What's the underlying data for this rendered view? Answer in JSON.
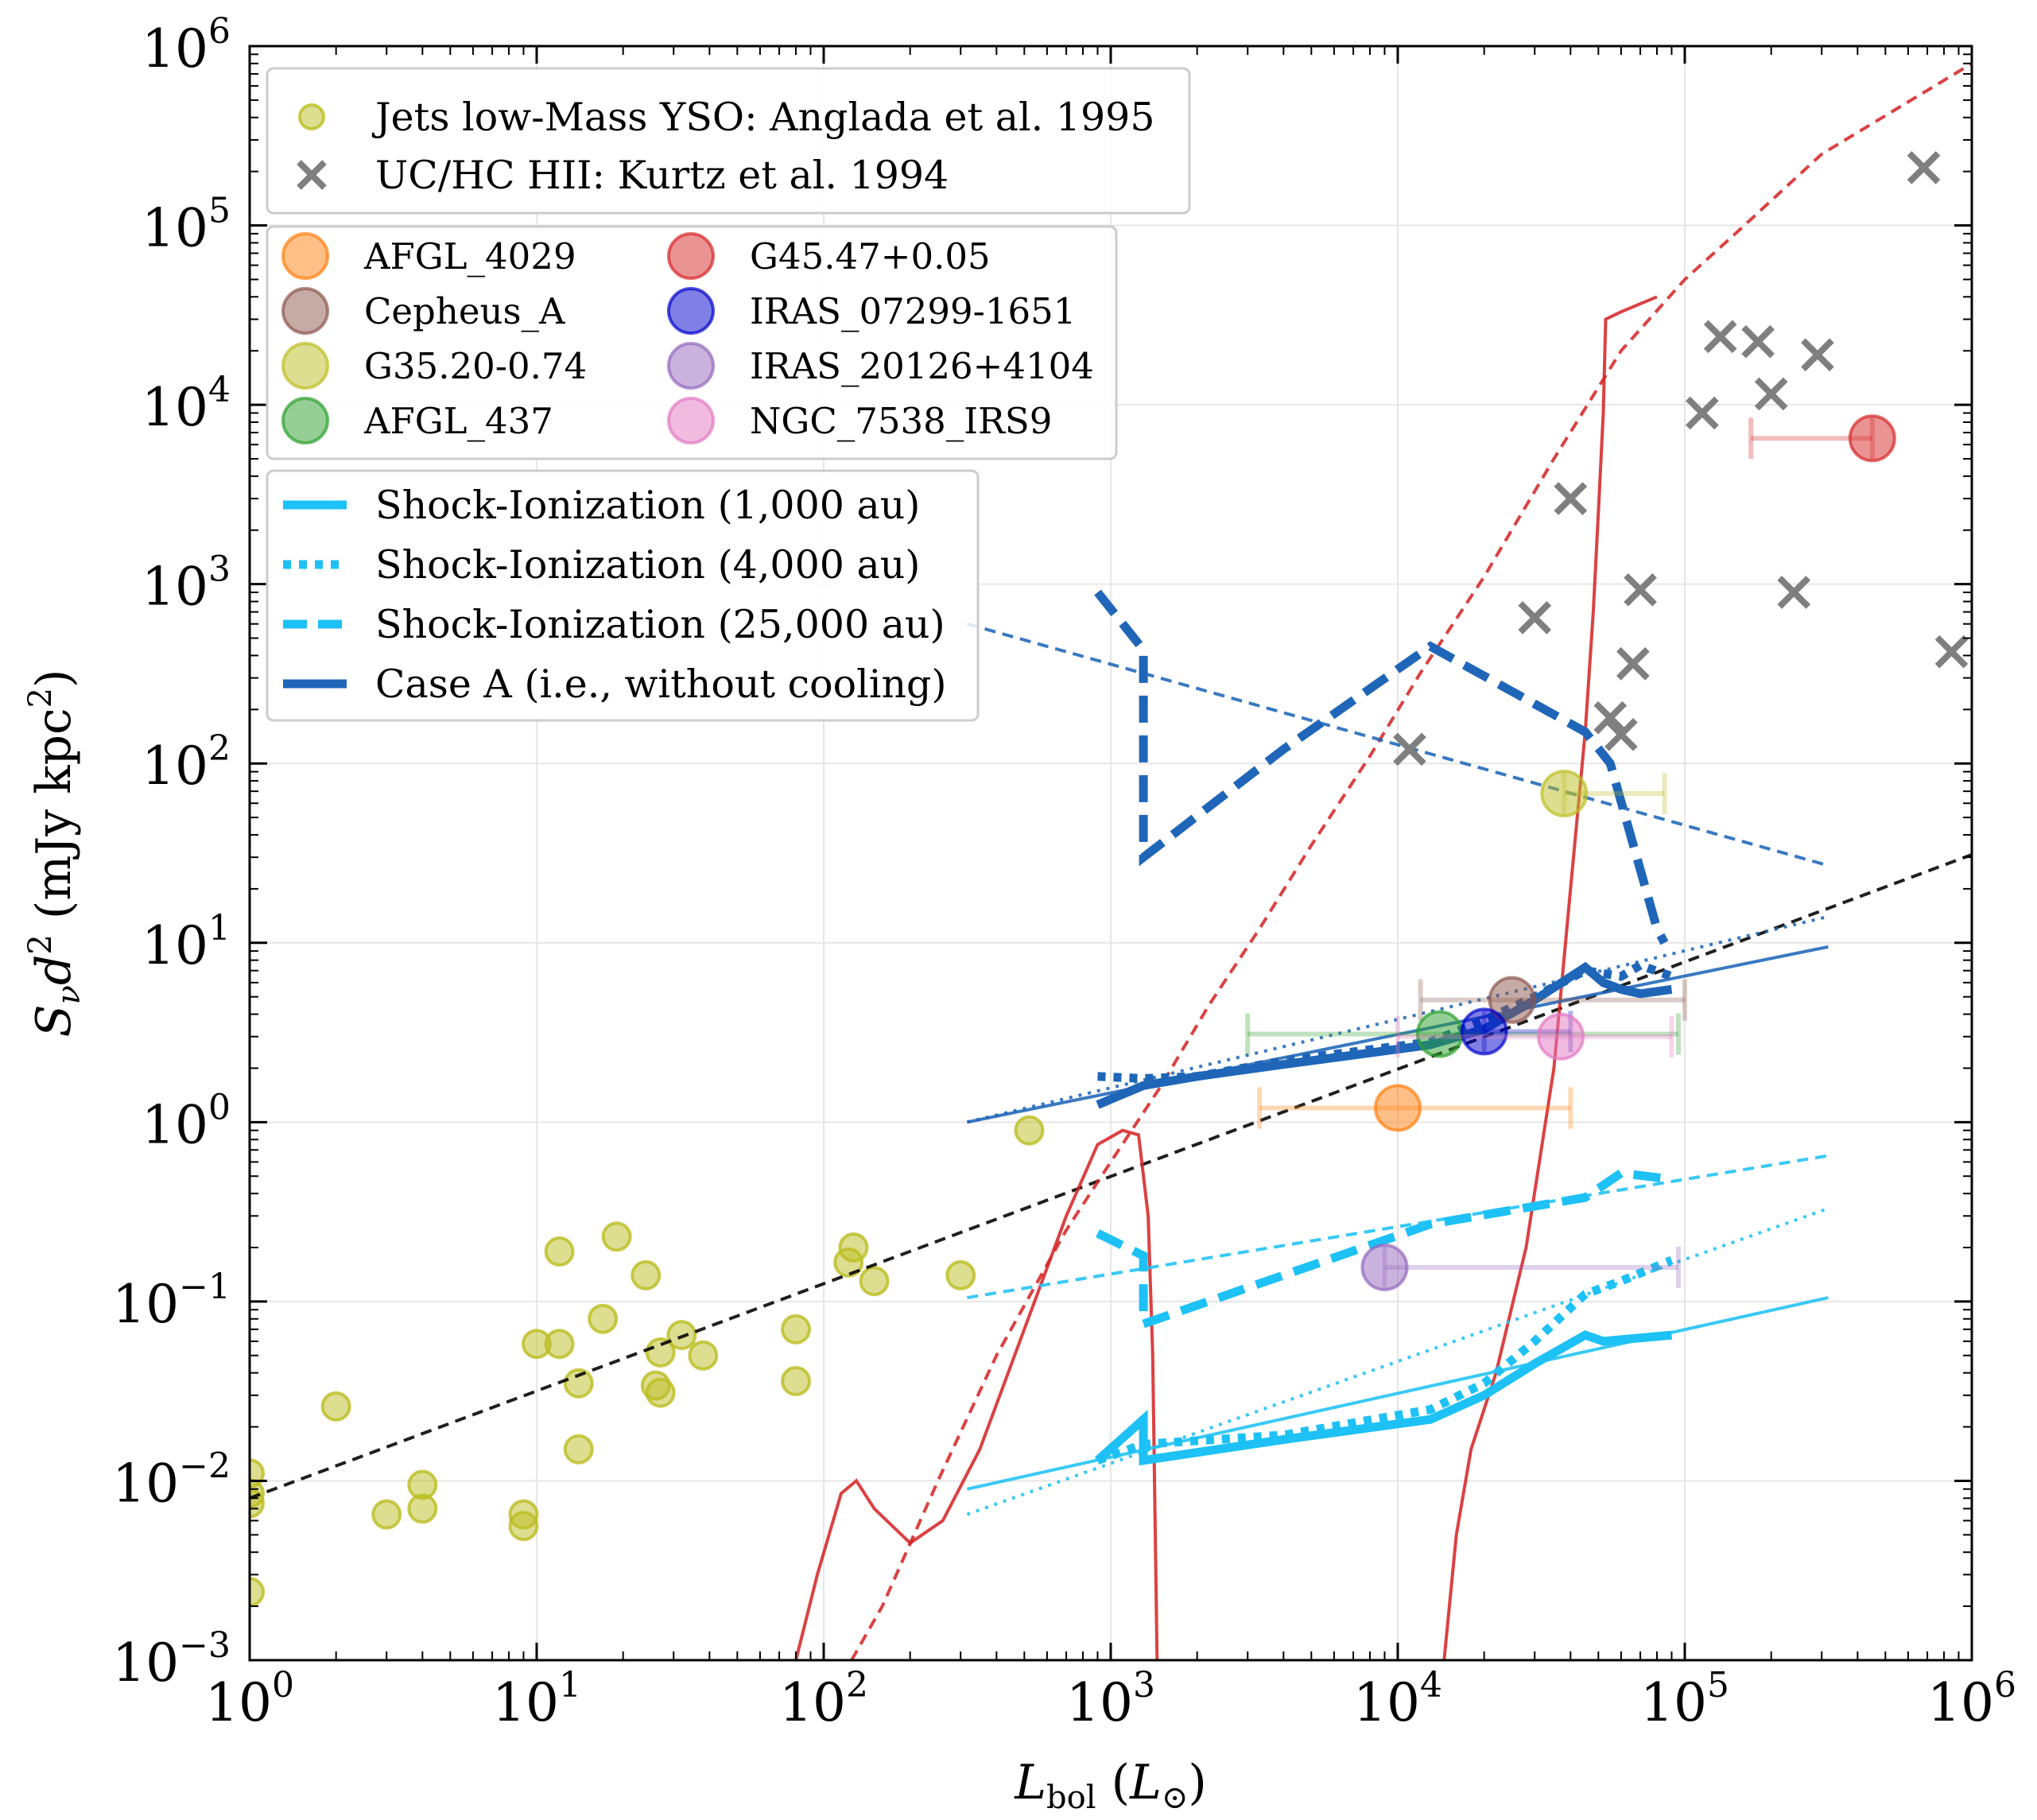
{
  "chart_data": {
    "type": "scatter",
    "xscale": "log",
    "yscale": "log",
    "xlim": [
      1,
      1000000
    ],
    "ylim": [
      0.001,
      1000000
    ],
    "xlabel": "L_bol (L_⊙)",
    "ylabel": "S_ν d² (mJy kpc²)",
    "grid": true,
    "x_ticks": [
      {
        "base": "10",
        "exp": "0",
        "value": 1
      },
      {
        "base": "10",
        "exp": "1",
        "value": 10
      },
      {
        "base": "10",
        "exp": "2",
        "value": 100
      },
      {
        "base": "10",
        "exp": "3",
        "value": 1000
      },
      {
        "base": "10",
        "exp": "4",
        "value": 10000
      },
      {
        "base": "10",
        "exp": "5",
        "value": 100000
      },
      {
        "base": "10",
        "exp": "6",
        "value": 1000000
      }
    ],
    "y_ticks": [
      {
        "base": "10",
        "exp": "−3",
        "value": 0.001
      },
      {
        "base": "10",
        "exp": "−2",
        "value": 0.01
      },
      {
        "base": "10",
        "exp": "−1",
        "value": 0.1
      },
      {
        "base": "10",
        "exp": "0",
        "value": 1
      },
      {
        "base": "10",
        "exp": "1",
        "value": 10
      },
      {
        "base": "10",
        "exp": "2",
        "value": 100
      },
      {
        "base": "10",
        "exp": "3",
        "value": 1000
      },
      {
        "base": "10",
        "exp": "4",
        "value": 10000
      },
      {
        "base": "10",
        "exp": "5",
        "value": 100000
      },
      {
        "base": "10",
        "exp": "6",
        "value": 1000000
      }
    ],
    "legend_reference": {
      "placement": "top-left",
      "entries": [
        {
          "label": "Jets low-Mass YSO: Anglada et al. 1995",
          "marker": "circle",
          "color": "#bcbd22"
        },
        {
          "label": "UC/HC HII: Kurtz et al. 1994",
          "marker": "x",
          "color": "#7f7f7f"
        }
      ]
    },
    "legend_sources": {
      "placement": "upper-left",
      "columns": [
        [
          "AFGL_4029",
          "Cepheus_A",
          "G35.20-0.74",
          "AFGL_437"
        ],
        [
          "G45.47+0.05",
          "IRAS_07299-1651",
          "IRAS_20126+4104",
          "NGC_7538_IRS9"
        ]
      ]
    },
    "legend_models": {
      "placement": "left",
      "entries": [
        {
          "label": "Shock-Ionization (1,000 au)",
          "style": "solid",
          "color": "#1ec1f5"
        },
        {
          "label": "Shock-Ionization (4,000 au)",
          "style": "dotted",
          "color": "#1ec1f5"
        },
        {
          "label": "Shock-Ionization (25,000 au)",
          "style": "dashed",
          "color": "#1ec1f5"
        },
        {
          "label": "Case A (i.e., without cooling)",
          "style": "solid",
          "color": "#1f66b8"
        }
      ]
    },
    "series": [
      {
        "name": "Jets low-Mass YSO: Anglada et al. 1995",
        "type": "scatter",
        "marker": "circle",
        "color": "#bcbd22",
        "points": [
          [
            1.0,
            0.011
          ],
          [
            1.0,
            0.0085
          ],
          [
            1.0,
            0.0075
          ],
          [
            1.0,
            0.0024
          ],
          [
            2.0,
            0.026
          ],
          [
            3.0,
            0.0065
          ],
          [
            4.0,
            0.0095
          ],
          [
            4.0,
            0.007
          ],
          [
            9.0,
            0.0065
          ],
          [
            9.0,
            0.0056
          ],
          [
            10,
            0.058
          ],
          [
            12,
            0.19
          ],
          [
            12,
            0.058
          ],
          [
            14,
            0.035
          ],
          [
            14,
            0.015
          ],
          [
            17,
            0.08
          ],
          [
            19,
            0.23
          ],
          [
            24,
            0.14
          ],
          [
            26,
            0.034
          ],
          [
            27,
            0.052
          ],
          [
            27,
            0.031
          ],
          [
            32,
            0.065
          ],
          [
            38,
            0.05
          ],
          [
            80,
            0.07
          ],
          [
            80,
            0.036
          ],
          [
            122,
            0.165
          ],
          [
            127,
            0.2
          ],
          [
            150,
            0.13
          ],
          [
            300,
            0.14
          ],
          [
            520,
            0.9
          ]
        ]
      },
      {
        "name": "UC/HC HII: Kurtz et al. 1994",
        "type": "scatter",
        "marker": "x",
        "color": "#7f7f7f",
        "points": [
          [
            11000,
            120
          ],
          [
            30000,
            650
          ],
          [
            40000,
            3000
          ],
          [
            55000,
            180
          ],
          [
            60000,
            145
          ],
          [
            66000,
            360
          ],
          [
            70000,
            930
          ],
          [
            115000,
            9000
          ],
          [
            133000,
            24000
          ],
          [
            180000,
            22500
          ],
          [
            200000,
            11500
          ],
          [
            240000,
            900
          ],
          [
            290000,
            19000
          ],
          [
            680000,
            210000
          ],
          [
            850000,
            420
          ]
        ]
      },
      {
        "name": "AFGL_4029",
        "type": "errorbar",
        "color": "#ff7f0e",
        "x": 10000,
        "y": 1.2,
        "xerr": [
          3300,
          40000
        ]
      },
      {
        "name": "Cepheus_A",
        "type": "errorbar",
        "color": "#8c564b",
        "x": 25000,
        "y": 4.8,
        "xerr": [
          12000,
          100000
        ]
      },
      {
        "name": "G35.20-0.74",
        "type": "errorbar",
        "color": "#bcbd22",
        "x": 38000,
        "y": 68,
        "xerr": [
          38000,
          85000
        ]
      },
      {
        "name": "AFGL_437",
        "type": "errorbar",
        "color": "#2ca02c",
        "x": 14000,
        "y": 3.1,
        "xerr": [
          3000,
          95000
        ]
      },
      {
        "name": "G45.47+0.05",
        "type": "errorbar",
        "color": "#d62728",
        "x": 450000,
        "y": 6500,
        "xerr": [
          170000,
          450000
        ]
      },
      {
        "name": "IRAS_07299-1651",
        "type": "errorbar",
        "color": "#0000cc",
        "x": 20000,
        "y": 3.2,
        "xerr": [
          20000,
          40000
        ]
      },
      {
        "name": "IRAS_20126+4104",
        "type": "errorbar",
        "color": "#9467bd",
        "x": 9000,
        "y": 0.155,
        "xerr": [
          9000,
          95000
        ]
      },
      {
        "name": "NGC_7538_IRS9",
        "type": "errorbar",
        "color": "#e377c2",
        "x": 37000,
        "y": 3.0,
        "xerr": [
          10000,
          90000
        ]
      },
      {
        "name": "Reference relation (black dashed)",
        "type": "line",
        "style": "dashed",
        "color": "#000000",
        "points": [
          [
            1,
            0.008
          ],
          [
            1000000,
            31
          ]
        ]
      },
      {
        "name": "Red dashed curve",
        "type": "line",
        "style": "dashed",
        "color": "#d62728",
        "points": [
          [
            125,
            0.001
          ],
          [
            160,
            0.002
          ],
          [
            250,
            0.01
          ],
          [
            400,
            0.05
          ],
          [
            700,
            0.25
          ],
          [
            1000,
            0.6
          ],
          [
            1500,
            1.6
          ],
          [
            2200,
            4.5
          ],
          [
            3300,
            12
          ],
          [
            5000,
            35
          ],
          [
            8000,
            110
          ],
          [
            12000,
            320
          ],
          [
            20000,
            1100
          ],
          [
            35000,
            5000
          ],
          [
            60000,
            20000
          ],
          [
            100000,
            50000
          ],
          [
            150000,
            90000
          ],
          [
            300000,
            250000
          ],
          [
            1000000,
            800000
          ]
        ]
      },
      {
        "name": "Red solid curve (low mass)",
        "type": "line",
        "style": "solid",
        "color": "#d62728",
        "points": [
          [
            80,
            0.001
          ],
          [
            95,
            0.003
          ],
          [
            115,
            0.0085
          ],
          [
            130,
            0.01
          ],
          [
            150,
            0.007
          ],
          [
            200,
            0.0045
          ],
          [
            260,
            0.006
          ],
          [
            350,
            0.015
          ],
          [
            500,
            0.07
          ],
          [
            700,
            0.3
          ],
          [
            900,
            0.75
          ],
          [
            1100,
            0.9
          ],
          [
            1250,
            0.85
          ],
          [
            1350,
            0.3
          ],
          [
            1400,
            0.05
          ],
          [
            1450,
            0.001
          ]
        ]
      },
      {
        "name": "Red solid curve (high mass)",
        "type": "line",
        "style": "solid",
        "color": "#d62728",
        "points": [
          [
            14500,
            0.001
          ],
          [
            16000,
            0.005
          ],
          [
            18000,
            0.015
          ],
          [
            22000,
            0.04
          ],
          [
            28000,
            0.2
          ],
          [
            35000,
            2
          ],
          [
            40000,
            20
          ],
          [
            45000,
            150
          ],
          [
            48000,
            700
          ],
          [
            50000,
            2500
          ],
          [
            52000,
            9000
          ],
          [
            53000,
            30000
          ],
          [
            60000,
            33000
          ],
          [
            80000,
            40000
          ]
        ]
      },
      {
        "name": "Case A fit (thin solid)",
        "type": "line",
        "style": "solid",
        "color": "#1f66b8",
        "points": [
          [
            316,
            1.0
          ],
          [
            316000,
            9.5
          ]
        ]
      },
      {
        "name": "Case A fit (thin dotted)",
        "type": "line",
        "style": "dotted",
        "color": "#1f66b8",
        "points": [
          [
            316,
            1.0
          ],
          [
            316000,
            14
          ]
        ]
      },
      {
        "name": "Case A fit (thin dashed)",
        "type": "line",
        "style": "dashed",
        "color": "#1f66b8",
        "points": [
          [
            316,
            600
          ],
          [
            316000,
            27
          ]
        ]
      },
      {
        "name": "Case A (1,000 au)",
        "type": "line",
        "style": "solid",
        "color": "#1f66b8",
        "points": [
          [
            900,
            1.25
          ],
          [
            1300,
            1.6
          ],
          [
            2000,
            1.8
          ],
          [
            4000,
            2.1
          ],
          [
            13000,
            2.7
          ],
          [
            20000,
            3.3
          ],
          [
            30000,
            4.8
          ],
          [
            45000,
            7.3
          ],
          [
            52000,
            6.0
          ],
          [
            60000,
            5.5
          ],
          [
            70000,
            5.2
          ],
          [
            90000,
            5.5
          ]
        ]
      },
      {
        "name": "Case A (4,000 au)",
        "type": "line",
        "style": "dotted",
        "color": "#1f66b8",
        "points": [
          [
            900,
            1.8
          ],
          [
            1300,
            1.75
          ],
          [
            2000,
            1.8
          ],
          [
            4000,
            2.2
          ],
          [
            13000,
            2.8
          ],
          [
            20000,
            3.7
          ],
          [
            30000,
            5.0
          ],
          [
            45000,
            7.0
          ],
          [
            60000,
            6.5
          ],
          [
            70000,
            7.5
          ],
          [
            90000,
            6.5
          ]
        ]
      },
      {
        "name": "Case A (25,000 au)",
        "type": "line",
        "style": "dashed",
        "color": "#1f66b8",
        "points": [
          [
            900,
            900
          ],
          [
            1300,
            430
          ],
          [
            1300,
            30
          ],
          [
            4000,
            120
          ],
          [
            13000,
            450
          ],
          [
            45000,
            150
          ],
          [
            55000,
            100
          ],
          [
            80000,
            12
          ],
          [
            85000,
            10
          ]
        ]
      },
      {
        "name": "Shock-Ionization fit (thin solid)",
        "type": "line",
        "style": "solid",
        "color": "#1ec1f5",
        "points": [
          [
            316,
            0.009
          ],
          [
            316000,
            0.105
          ]
        ]
      },
      {
        "name": "Shock-Ionization fit (thin dotted)",
        "type": "line",
        "style": "dotted",
        "color": "#1ec1f5",
        "points": [
          [
            316,
            0.0065
          ],
          [
            316000,
            0.33
          ]
        ]
      },
      {
        "name": "Shock-Ionization fit (thin dashed)",
        "type": "line",
        "style": "dashed",
        "color": "#1ec1f5",
        "points": [
          [
            316,
            0.105
          ],
          [
            316000,
            0.65
          ]
        ]
      },
      {
        "name": "Shock-Ionization (1,000 au)",
        "type": "line",
        "style": "solid",
        "color": "#1ec1f5",
        "points": [
          [
            900,
            0.013
          ],
          [
            1300,
            0.022
          ],
          [
            1300,
            0.013
          ],
          [
            4000,
            0.017
          ],
          [
            13000,
            0.022
          ],
          [
            20000,
            0.03
          ],
          [
            30000,
            0.045
          ],
          [
            45000,
            0.065
          ],
          [
            52000,
            0.06
          ],
          [
            90000,
            0.065
          ]
        ]
      },
      {
        "name": "Shock-Ionization (4,000 au)",
        "type": "line",
        "style": "dotted",
        "color": "#1ec1f5",
        "points": [
          [
            900,
            0.013
          ],
          [
            1300,
            0.016
          ],
          [
            4000,
            0.018
          ],
          [
            13000,
            0.025
          ],
          [
            20000,
            0.035
          ],
          [
            30000,
            0.06
          ],
          [
            45000,
            0.11
          ],
          [
            60000,
            0.13
          ],
          [
            90000,
            0.17
          ]
        ]
      },
      {
        "name": "Shock-Ionization (25,000 au)",
        "type": "line",
        "style": "dashed",
        "color": "#1ec1f5",
        "points": [
          [
            900,
            0.24
          ],
          [
            1300,
            0.18
          ],
          [
            1300,
            0.075
          ],
          [
            4000,
            0.14
          ],
          [
            13000,
            0.27
          ],
          [
            45000,
            0.38
          ],
          [
            60000,
            0.52
          ],
          [
            90000,
            0.48
          ]
        ]
      }
    ]
  }
}
